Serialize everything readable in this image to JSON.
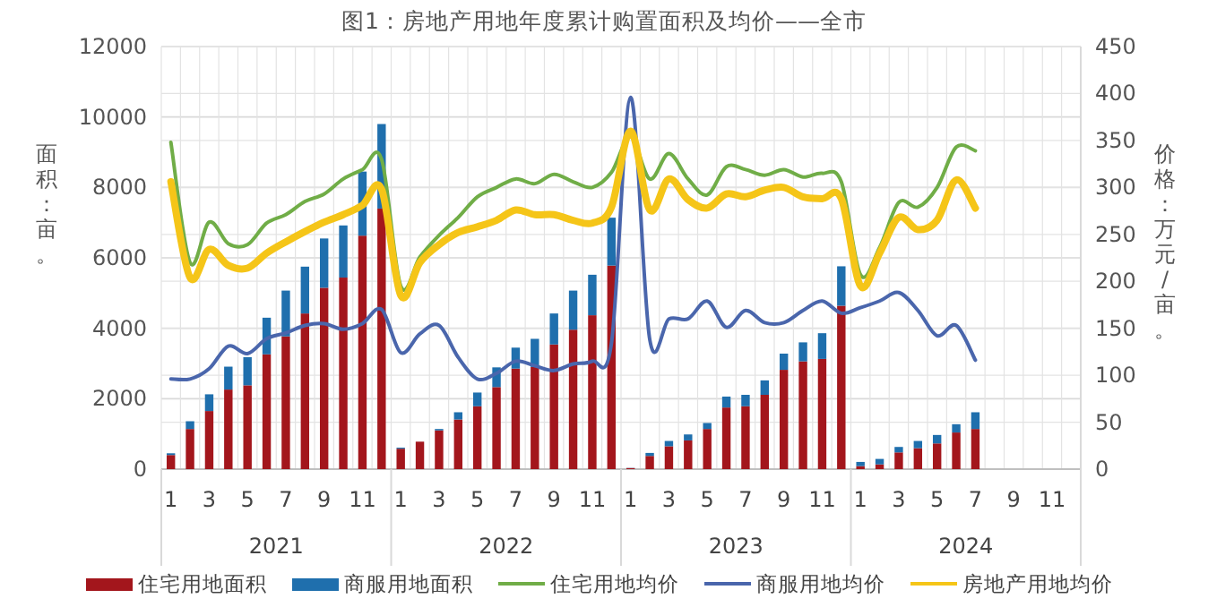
{
  "chart_data": {
    "type": "bar",
    "title": "图1：房地产用地年度累计购置面积及均价——全市",
    "ylabel": "面积：亩。",
    "y2label": "价格：万元/亩。",
    "categories": [
      "1",
      null,
      "3",
      null,
      "5",
      null,
      "7",
      null,
      "9",
      null,
      "11",
      null,
      "1",
      null,
      "3",
      null,
      "5",
      null,
      "7",
      null,
      "9",
      null,
      "11",
      null,
      "1",
      null,
      "3",
      null,
      "5",
      null,
      "7",
      null,
      "9",
      null,
      "11",
      null,
      "1",
      null,
      "3",
      null,
      "5",
      null,
      "7",
      null,
      "9",
      null,
      "11",
      null
    ],
    "annotations": [
      "2021",
      "2022",
      "2023",
      "2024"
    ],
    "stacked": true,
    "grid": true,
    "legend": "bottom",
    "ylim": [
      0,
      12000
    ],
    "yticks": [
      0,
      2000,
      4000,
      6000,
      8000,
      10000,
      12000
    ],
    "y2lim": [
      0,
      450
    ],
    "y2ticks": [
      0,
      50,
      100,
      150,
      200,
      250,
      300,
      350,
      400,
      450
    ],
    "series": [
      {
        "name": "住宅用地面积",
        "type": "bar",
        "color": "#a3161c",
        "values": [
          400,
          1140,
          1650,
          2260,
          2380,
          3260,
          3770,
          4420,
          5150,
          5440,
          6630,
          7400,
          580,
          780,
          1100,
          1410,
          1785,
          2330,
          2855,
          2900,
          3540,
          3960,
          4370,
          5780,
          30,
          375,
          650,
          815,
          1140,
          1750,
          1785,
          2110,
          2820,
          3060,
          3130,
          4640,
          85,
          135,
          475,
          595,
          730,
          1040,
          1140,
          null,
          null,
          null,
          null,
          null
        ]
      },
      {
        "name": "商服用地面积",
        "type": "bar",
        "color": "#1f6fad",
        "values": [
          50,
          220,
          475,
          650,
          800,
          1040,
          1300,
          1330,
          1400,
          1480,
          1820,
          2400,
          30,
          null,
          40,
          205,
          390,
          560,
          595,
          800,
          880,
          1110,
          1150,
          1360,
          5,
          85,
          150,
          170,
          170,
          310,
          325,
          410,
          460,
          540,
          730,
          1120,
          120,
          155,
          155,
          205,
          240,
          235,
          475,
          null,
          null,
          null,
          null,
          null
        ]
      },
      {
        "name": "住宅用地均价",
        "type": "line",
        "axis": "y2",
        "color": "#70ad47",
        "values": [
          348,
          220,
          263,
          240,
          239,
          262,
          271,
          285,
          293,
          309,
          319,
          330,
          195,
          226,
          249,
          268,
          290,
          300,
          309,
          304,
          314,
          306,
          300,
          316,
          354,
          309,
          336,
          309,
          292,
          322,
          319,
          313,
          319,
          311,
          315,
          306,
          207,
          236,
          284,
          279,
          300,
          343,
          339,
          null,
          null,
          null,
          null,
          null
        ]
      },
      {
        "name": "商服用地均价",
        "type": "line",
        "axis": "y2",
        "color": "#4a66ac",
        "values": [
          96,
          96,
          107,
          131,
          123,
          139,
          145,
          153,
          155,
          149,
          155,
          170,
          124,
          144,
          153,
          119,
          96,
          102,
          115,
          110,
          105,
          112,
          115,
          134,
          396,
          138,
          160,
          160,
          179,
          151,
          169,
          156,
          156,
          169,
          179,
          166,
          172,
          179,
          188,
          169,
          142,
          153,
          116,
          null,
          null,
          null,
          null,
          null
        ]
      },
      {
        "name": "房地产用地均价",
        "type": "line",
        "axis": "y2",
        "color": "#f5c518",
        "values": [
          306,
          204,
          234,
          217,
          214,
          230,
          242,
          253,
          263,
          271,
          281,
          298,
          185,
          220,
          239,
          252,
          258,
          265,
          276,
          271,
          271,
          265,
          262,
          279,
          360,
          276,
          309,
          287,
          278,
          293,
          290,
          297,
          300,
          290,
          288,
          288,
          195,
          230,
          268,
          255,
          265,
          308,
          278,
          null,
          null,
          null,
          null,
          null
        ]
      }
    ]
  }
}
